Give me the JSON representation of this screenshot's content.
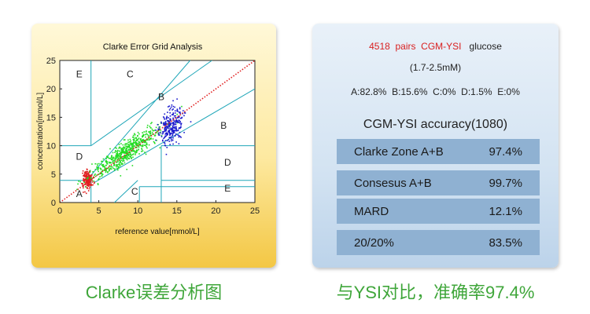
{
  "chart_data": {
    "type": "scatter",
    "title": "Clarke Error Grid Analysis",
    "xlabel": "reference value[mmol/L]",
    "ylabel": "concentration[mmol/L]",
    "xlim": [
      0,
      25
    ],
    "ylim": [
      0,
      25
    ],
    "xticks": [
      0,
      5,
      10,
      15,
      20,
      25
    ],
    "yticks": [
      0,
      5,
      10,
      15,
      20,
      25
    ],
    "grid": false,
    "zone_labels": [
      {
        "label": "E",
        "x": 2.5,
        "y": 22
      },
      {
        "label": "C",
        "x": 9,
        "y": 22
      },
      {
        "label": "B",
        "x": 13,
        "y": 18
      },
      {
        "label": "B",
        "x": 21,
        "y": 13
      },
      {
        "label": "D",
        "x": 2.5,
        "y": 7.5
      },
      {
        "label": "D",
        "x": 21.5,
        "y": 6.5
      },
      {
        "label": "A",
        "x": 2.5,
        "y": 1
      },
      {
        "label": "C",
        "x": 9.6,
        "y": 1.4
      },
      {
        "label": "E",
        "x": 21.5,
        "y": 1.9
      }
    ],
    "series": [
      {
        "color": "#e02020",
        "cx": 3.5,
        "cy": 4.2,
        "sx": 0.3,
        "sy": 0.8,
        "n": 200
      },
      {
        "color": "#22dd22",
        "cx": 8.5,
        "cy": 8.8,
        "sx": 2.2,
        "sy": 2.1,
        "n": 600
      },
      {
        "color": "#1a1acc",
        "cx": 14.2,
        "cy": 13.6,
        "sx": 0.75,
        "sy": 1.6,
        "n": 280
      }
    ],
    "diagonal_color": "#e02020"
  },
  "info": {
    "pairs_count": "4518",
    "pairs_label": "pairs",
    "pairs_name": "CGM-YSI",
    "glucose_label": "glucose",
    "range": "(1.7-2.5mM)",
    "zones": "A:82.8%  B:15.6%  C:0%  D:1.5%  E:0%"
  },
  "accuracy": {
    "title": "CGM-YSI accuracy(1080)",
    "rows": [
      {
        "label": "Clarke Zone A+B",
        "value": "97.4%"
      },
      {
        "label": "Consesus A+B",
        "value": "99.7%"
      },
      {
        "label": "MARD",
        "value": "12.1%"
      },
      {
        "label": "20/20%",
        "value": "83.5%"
      }
    ]
  },
  "captions": {
    "left": "Clarke误差分析图",
    "right": "与YSI对比，准确率97.4%"
  }
}
